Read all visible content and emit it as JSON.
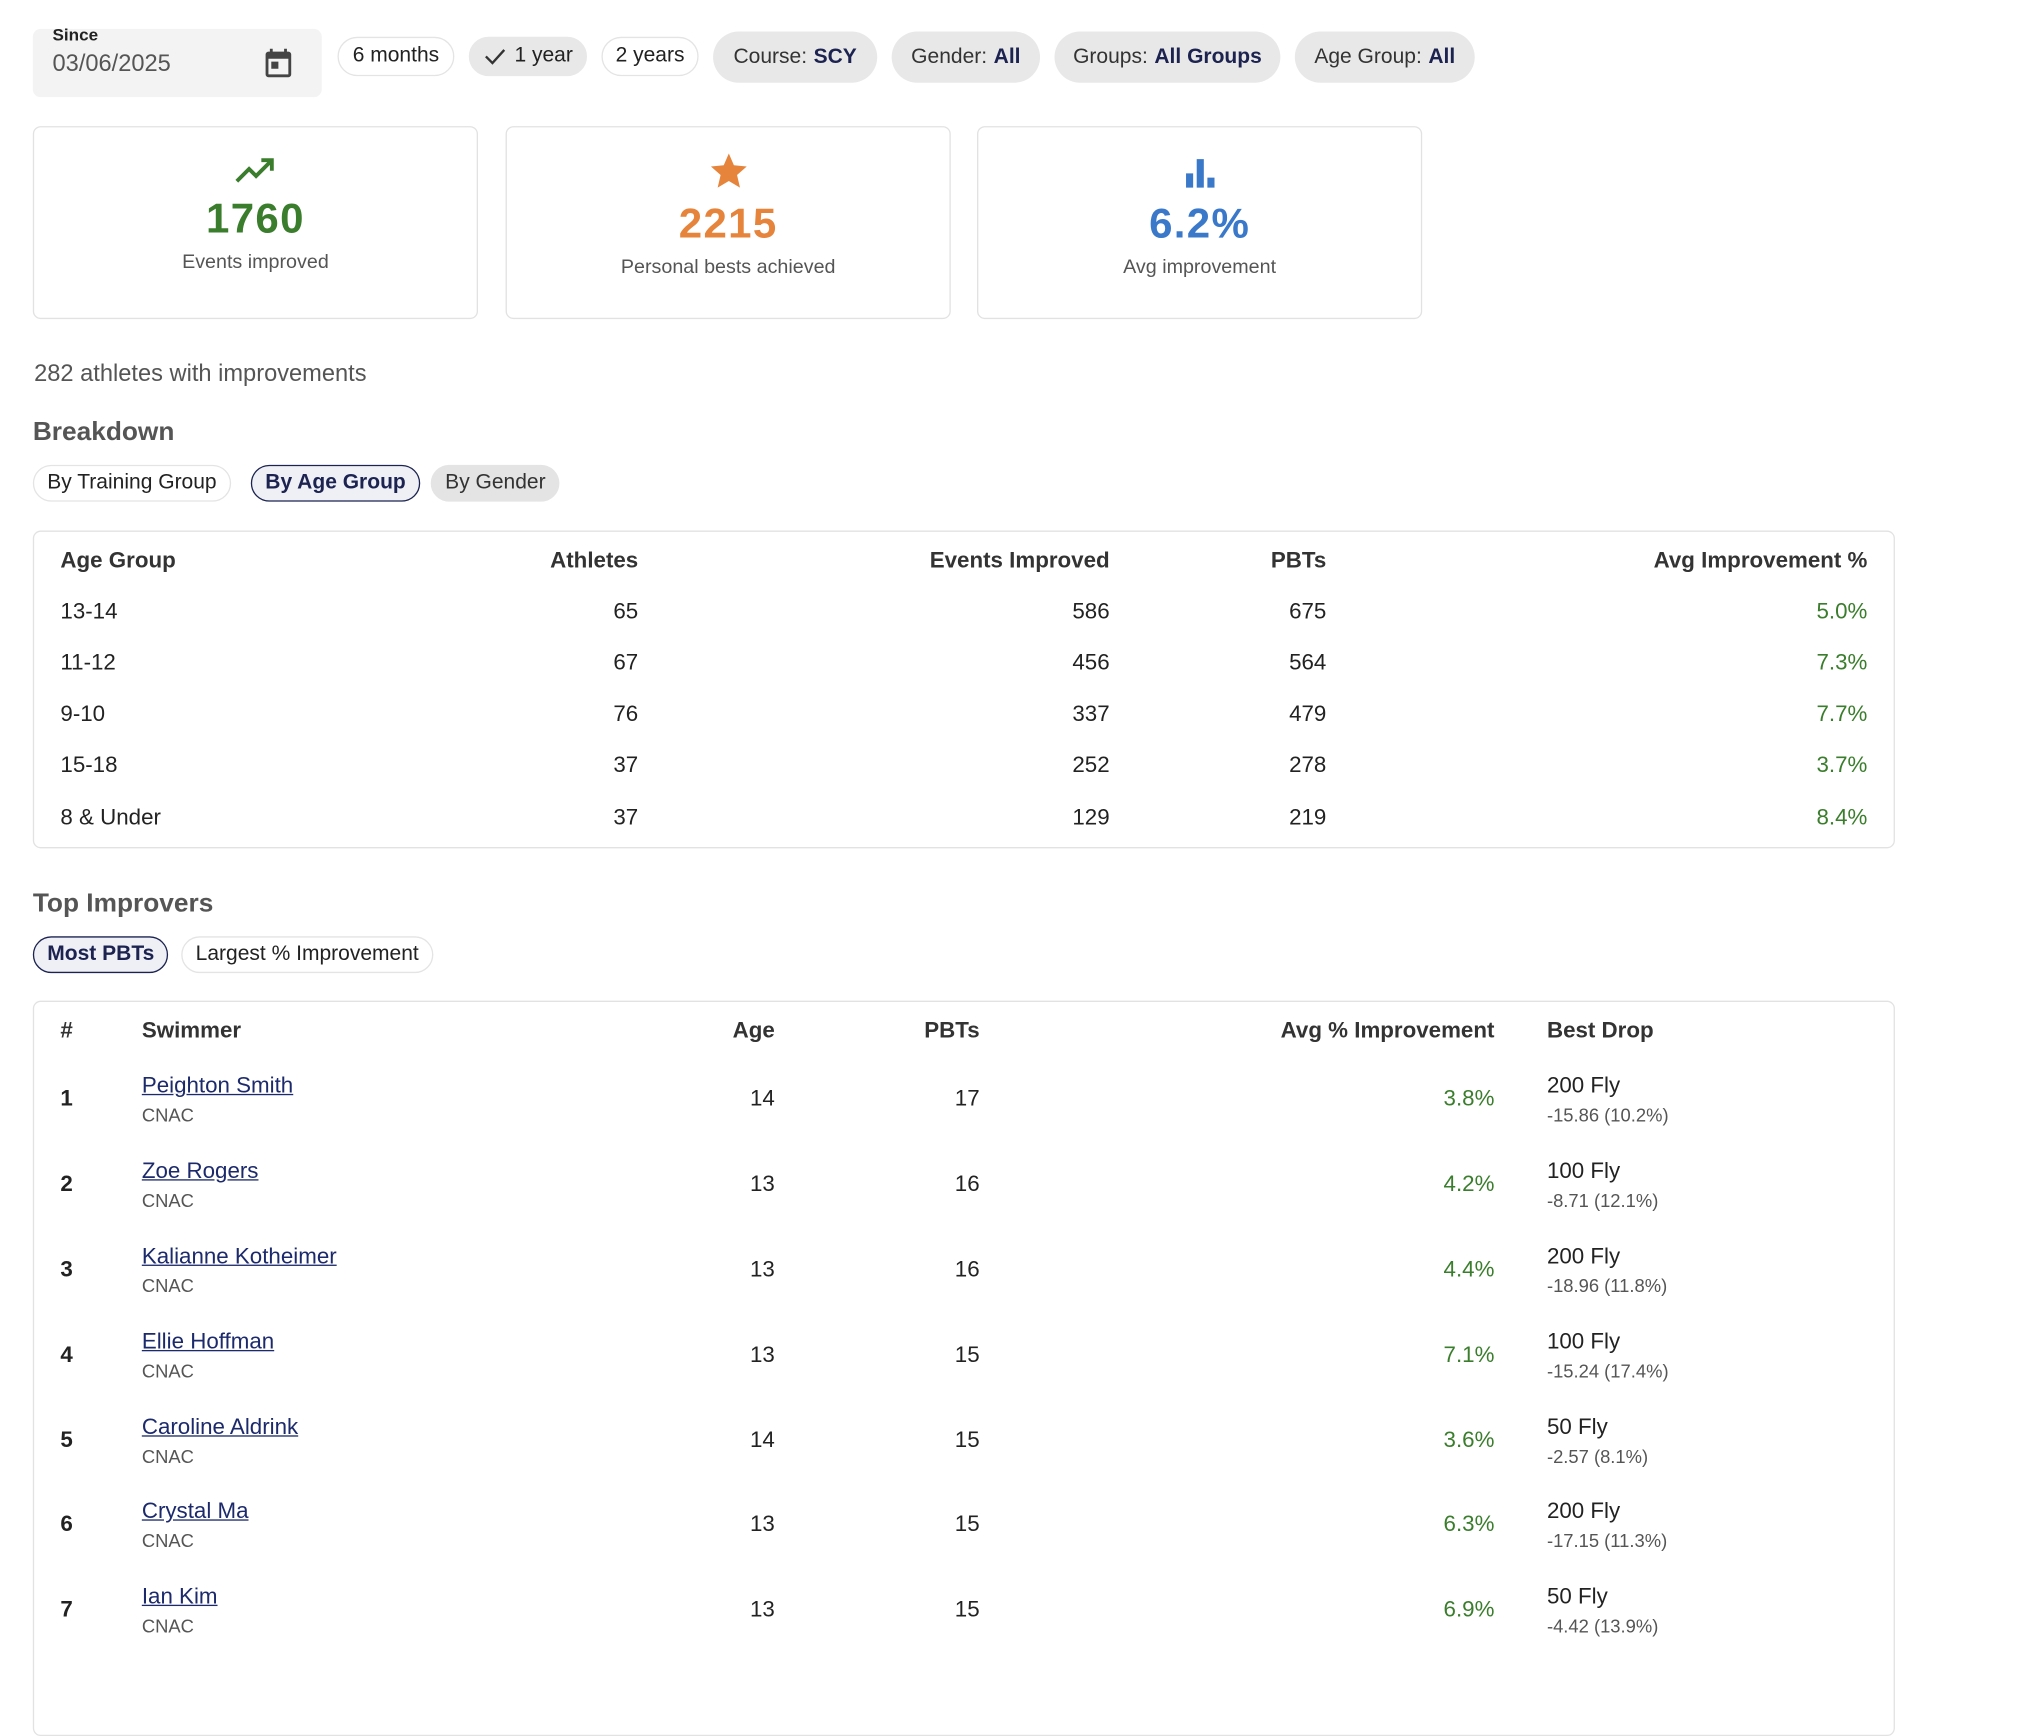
{
  "filters": {
    "since_label": "Since",
    "since_date": "03/06/2025",
    "ranges": [
      "6 months",
      "1 year",
      "2 years"
    ],
    "chips": [
      {
        "label": "Course:",
        "value": "SCY"
      },
      {
        "label": "Gender:",
        "value": "All"
      },
      {
        "label": "Groups:",
        "value": "All Groups"
      },
      {
        "label": "Age Group:",
        "value": "All"
      }
    ]
  },
  "stats": [
    {
      "value": "1760",
      "label": "Events improved"
    },
    {
      "value": "2215",
      "label": "Personal bests achieved"
    },
    {
      "value": "6.2%",
      "label": "Avg improvement"
    }
  ],
  "athletes_note": "282 athletes with improvements",
  "breakdown": {
    "title": "Breakdown",
    "tabs": [
      "By Training Group",
      "By Age Group",
      "By Gender"
    ],
    "table": {
      "headers": [
        "Age Group",
        "Athletes",
        "Events Improved",
        "PBTs",
        "Avg Improvement %"
      ],
      "rows": [
        [
          "13-14",
          "65",
          "586",
          "675",
          "5.0%"
        ],
        [
          "11-12",
          "67",
          "456",
          "564",
          "7.3%"
        ],
        [
          "9-10",
          "76",
          "337",
          "479",
          "7.7%"
        ],
        [
          "15-18",
          "37",
          "252",
          "278",
          "3.7%"
        ],
        [
          "8 & Under",
          "37",
          "129",
          "219",
          "8.4%"
        ]
      ]
    }
  },
  "top_improvers": {
    "title": "Top Improvers",
    "tabs": [
      "Most PBTs",
      "Largest % Improvement"
    ],
    "table": {
      "headers": [
        "#",
        "Swimmer",
        "Age",
        "PBTs",
        "Avg % Improvement",
        "Best Drop"
      ],
      "rows": [
        {
          "rank": "1",
          "name": "Peighton Smith",
          "club": "CNAC",
          "age": "14",
          "pbts": "17",
          "avg": "3.8%",
          "event": "200 Fly",
          "drop": "-15.86 (10.2%)"
        },
        {
          "rank": "2",
          "name": "Zoe Rogers",
          "club": "CNAC",
          "age": "13",
          "pbts": "16",
          "avg": "4.2%",
          "event": "100 Fly",
          "drop": "-8.71 (12.1%)"
        },
        {
          "rank": "3",
          "name": "Kalianne Kotheimer",
          "club": "CNAC",
          "age": "13",
          "pbts": "16",
          "avg": "4.4%",
          "event": "200 Fly",
          "drop": "-18.96 (11.8%)"
        },
        {
          "rank": "4",
          "name": "Ellie Hoffman",
          "club": "CNAC",
          "age": "13",
          "pbts": "15",
          "avg": "7.1%",
          "event": "100 Fly",
          "drop": "-15.24 (17.4%)"
        },
        {
          "rank": "5",
          "name": "Caroline Aldrink",
          "club": "CNAC",
          "age": "14",
          "pbts": "15",
          "avg": "3.6%",
          "event": "50 Fly",
          "drop": "-2.57 (8.1%)"
        },
        {
          "rank": "6",
          "name": "Crystal Ma",
          "club": "CNAC",
          "age": "13",
          "pbts": "15",
          "avg": "6.3%",
          "event": "200 Fly",
          "drop": "-17.15 (11.3%)"
        },
        {
          "rank": "7",
          "name": "Ian Kim",
          "club": "CNAC",
          "age": "13",
          "pbts": "15",
          "avg": "6.9%",
          "event": "50 Fly",
          "drop": "-4.42 (13.9%)"
        }
      ]
    }
  }
}
